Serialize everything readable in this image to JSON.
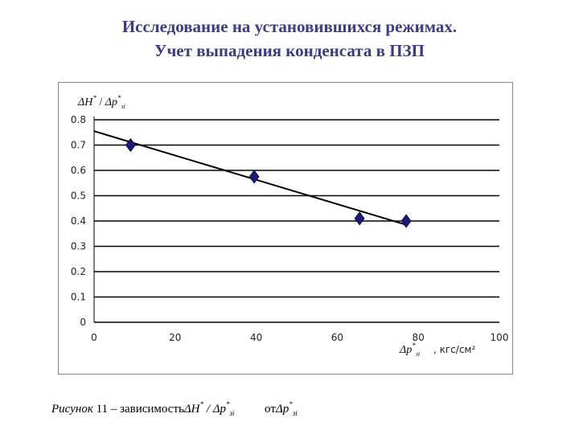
{
  "slide": {
    "title_line1": "Исследование на установившихся режимах.",
    "title_line2": "Учет выпадения конденсата в ПЗП"
  },
  "chart_data": {
    "type": "scatter",
    "ylabel": "ΔH* / Δp*зi",
    "xlabel": "Δp*зi",
    "xunit": ", кгс/см²",
    "xlim": [
      0,
      100
    ],
    "ylim": [
      0,
      0.8
    ],
    "xticks": [
      "0",
      "20",
      "40",
      "60",
      "80",
      "100"
    ],
    "yticks": [
      "0",
      "0.1",
      "0.2",
      "0.3",
      "0.4",
      "0.5",
      "0.6",
      "0.7",
      "0.8"
    ],
    "grid": "horizontal",
    "marker": "diamond",
    "marker_color": "#1a1a7a",
    "series": [
      {
        "x": [
          9,
          39.5,
          65.5,
          77
        ],
        "y": [
          0.7,
          0.575,
          0.41,
          0.4
        ]
      }
    ],
    "trendline": {
      "x": [
        0,
        77
      ],
      "y": [
        0.755,
        0.385
      ]
    }
  },
  "caption": {
    "prefix": "Рисунок",
    "number": "11",
    "text": " – зависимость",
    "between": " от"
  },
  "math": {
    "delta": "Δ",
    "H": "H",
    "p": "p",
    "star": "*",
    "sub": "зi",
    "slash": " / "
  }
}
